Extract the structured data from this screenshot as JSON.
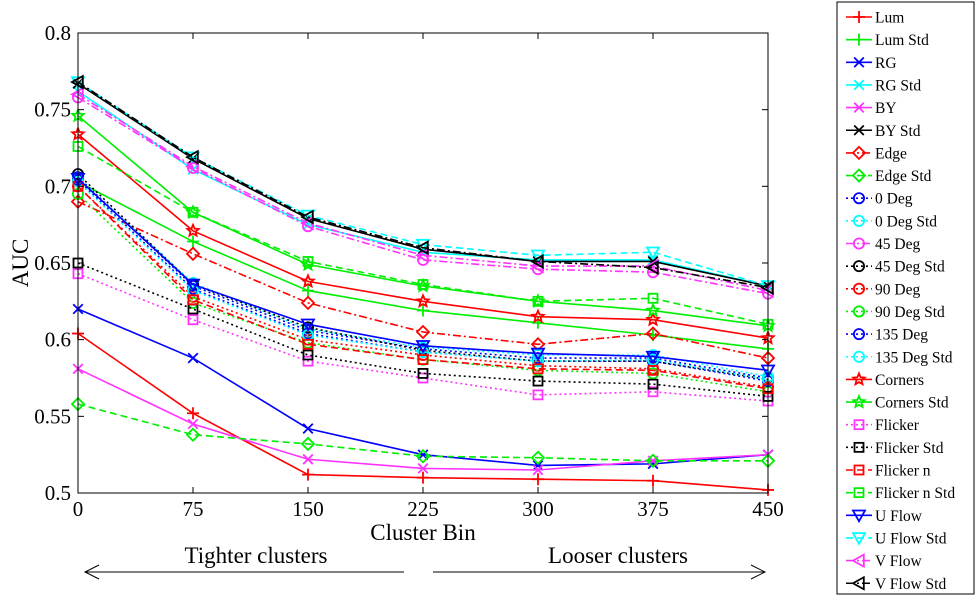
{
  "chart_data": {
    "type": "line",
    "title": "",
    "xlabel": "Cluster Bin",
    "ylabel": "AUC",
    "x": [
      0,
      75,
      150,
      225,
      300,
      375,
      450
    ],
    "xlim": [
      0,
      450
    ],
    "ylim": [
      0.5,
      0.8
    ],
    "xticks": [
      "0",
      "75",
      "150",
      "225",
      "300",
      "375",
      "450"
    ],
    "yticks": [
      "0.5",
      "0.55",
      "0.6",
      "0.65",
      "0.7",
      "0.75",
      "0.8"
    ],
    "grid": false,
    "legend_position": "outside-right",
    "annotations": {
      "left": "Tighter clusters",
      "right": "Looser clusters"
    },
    "series": [
      {
        "name": "Lum",
        "color": "#ff0000",
        "dash": "solid",
        "marker": "plus",
        "values": [
          0.604,
          0.552,
          0.512,
          0.51,
          0.509,
          0.508,
          0.502
        ]
      },
      {
        "name": "Lum Std",
        "color": "#00ee00",
        "dash": "solid",
        "marker": "plus",
        "values": [
          0.703,
          0.664,
          0.632,
          0.619,
          0.611,
          0.603,
          0.594
        ]
      },
      {
        "name": "RG",
        "color": "#0000ff",
        "dash": "solid",
        "marker": "x",
        "values": [
          0.62,
          0.588,
          0.542,
          0.525,
          0.518,
          0.519,
          0.525
        ]
      },
      {
        "name": "RG Std",
        "color": "#00ffff",
        "dash": "solid",
        "marker": "x",
        "values": [
          0.762,
          0.711,
          0.675,
          0.657,
          0.652,
          0.652,
          0.635
        ]
      },
      {
        "name": "BY",
        "color": "#ff33ff",
        "dash": "solid",
        "marker": "x",
        "values": [
          0.581,
          0.545,
          0.522,
          0.516,
          0.515,
          0.521,
          0.525
        ]
      },
      {
        "name": "BY Std",
        "color": "#000000",
        "dash": "solid",
        "marker": "x",
        "values": [
          0.767,
          0.718,
          0.679,
          0.659,
          0.651,
          0.651,
          0.635
        ]
      },
      {
        "name": "Edge",
        "color": "#ff0000",
        "dash": "dashdot",
        "marker": "diamond",
        "values": [
          0.69,
          0.656,
          0.624,
          0.605,
          0.597,
          0.604,
          0.588
        ]
      },
      {
        "name": "Edge Std",
        "color": "#00ee00",
        "dash": "dashed",
        "marker": "diamond",
        "values": [
          0.558,
          0.538,
          0.532,
          0.524,
          0.523,
          0.521,
          0.521
        ]
      },
      {
        "name": "0 Deg",
        "color": "#0000ff",
        "dash": "dotted",
        "marker": "circle",
        "values": [
          0.706,
          0.635,
          0.606,
          0.594,
          0.588,
          0.588,
          0.575
        ]
      },
      {
        "name": "0 Deg Std",
        "color": "#00ffff",
        "dash": "dotted",
        "marker": "circle",
        "values": [
          0.705,
          0.637,
          0.607,
          0.595,
          0.59,
          0.59,
          0.576
        ]
      },
      {
        "name": "45 Deg",
        "color": "#ff33ff",
        "dash": "dashdot",
        "marker": "circle",
        "values": [
          0.758,
          0.712,
          0.674,
          0.652,
          0.646,
          0.644,
          0.63
        ]
      },
      {
        "name": "45 Deg Std",
        "color": "#000000",
        "dash": "dotted",
        "marker": "circle",
        "values": [
          0.708,
          0.636,
          0.608,
          0.593,
          0.586,
          0.586,
          0.574
        ]
      },
      {
        "name": "90 Deg",
        "color": "#ff0000",
        "dash": "dotted",
        "marker": "circle",
        "values": [
          0.7,
          0.628,
          0.6,
          0.59,
          0.583,
          0.581,
          0.569
        ]
      },
      {
        "name": "90 Deg Std",
        "color": "#00ee00",
        "dash": "dotted",
        "marker": "circle",
        "values": [
          0.695,
          0.624,
          0.598,
          0.587,
          0.58,
          0.578,
          0.566
        ]
      },
      {
        "name": "135 Deg",
        "color": "#0000ff",
        "dash": "dotted",
        "marker": "circle",
        "values": [
          0.704,
          0.633,
          0.604,
          0.592,
          0.586,
          0.586,
          0.573
        ]
      },
      {
        "name": "135 Deg Std",
        "color": "#00ffff",
        "dash": "dotted",
        "marker": "circle",
        "values": [
          0.703,
          0.632,
          0.603,
          0.592,
          0.586,
          0.587,
          0.574
        ]
      },
      {
        "name": "Corners",
        "color": "#ff0000",
        "dash": "solid",
        "marker": "star",
        "values": [
          0.734,
          0.671,
          0.638,
          0.625,
          0.615,
          0.613,
          0.601
        ]
      },
      {
        "name": "Corners Std",
        "color": "#00ee00",
        "dash": "solid",
        "marker": "star",
        "values": [
          0.746,
          0.683,
          0.649,
          0.635,
          0.625,
          0.619,
          0.609
        ]
      },
      {
        "name": "Flicker",
        "color": "#ff33ff",
        "dash": "dotted",
        "marker": "square",
        "values": [
          0.643,
          0.613,
          0.586,
          0.575,
          0.564,
          0.566,
          0.56
        ]
      },
      {
        "name": "Flicker Std",
        "color": "#000000",
        "dash": "dotted",
        "marker": "square",
        "values": [
          0.65,
          0.62,
          0.59,
          0.578,
          0.573,
          0.571,
          0.563
        ]
      },
      {
        "name": "Flicker n",
        "color": "#ff0000",
        "dash": "dashed",
        "marker": "square",
        "values": [
          0.7,
          0.626,
          0.597,
          0.587,
          0.581,
          0.58,
          0.568
        ]
      },
      {
        "name": "Flicker n Std",
        "color": "#00ee00",
        "dash": "dashed",
        "marker": "square",
        "values": [
          0.726,
          0.683,
          0.651,
          0.636,
          0.625,
          0.627,
          0.61
        ]
      },
      {
        "name": "U Flow",
        "color": "#0000ff",
        "dash": "solid",
        "marker": "triangle-down",
        "values": [
          0.705,
          0.636,
          0.61,
          0.596,
          0.591,
          0.589,
          0.58
        ]
      },
      {
        "name": "U Flow Std",
        "color": "#00ffff",
        "dash": "dashed",
        "marker": "triangle-down",
        "values": [
          0.768,
          0.719,
          0.681,
          0.662,
          0.655,
          0.657,
          0.635
        ]
      },
      {
        "name": "V Flow",
        "color": "#ff33ff",
        "dash": "dashdot",
        "marker": "triangle-left",
        "values": [
          0.76,
          0.713,
          0.676,
          0.655,
          0.648,
          0.648,
          0.632
        ]
      },
      {
        "name": "V Flow Std",
        "color": "#000000",
        "dash": "dashdot",
        "marker": "triangle-left",
        "values": [
          0.768,
          0.719,
          0.68,
          0.66,
          0.651,
          0.647,
          0.634
        ]
      }
    ]
  }
}
